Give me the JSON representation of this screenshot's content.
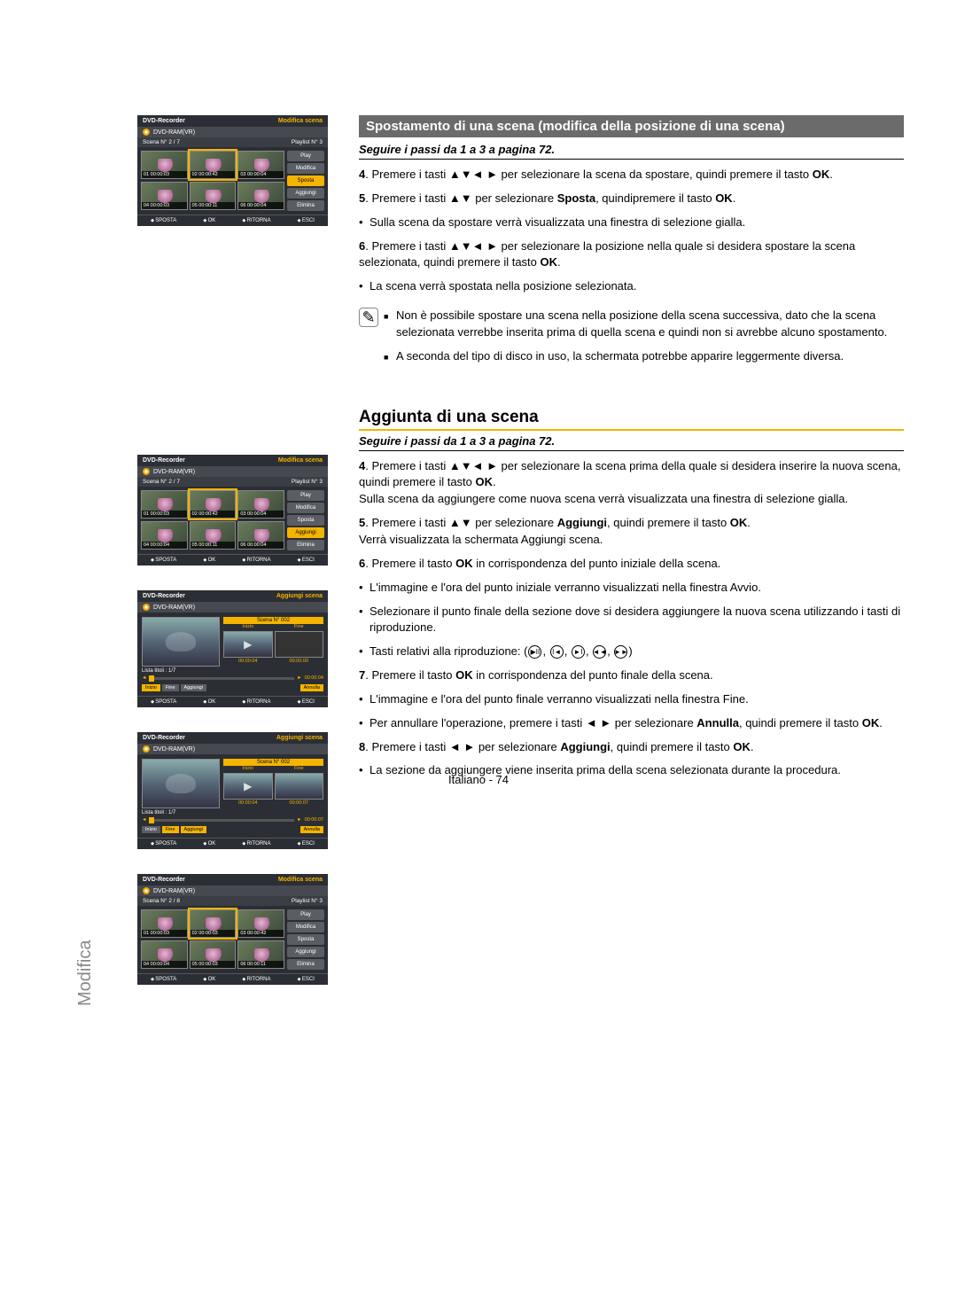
{
  "sideTab": "Modifica",
  "pageNum": "Italiano - 74",
  "section1": {
    "title": "Spostamento di una scena (modifica della posizione di una scena)",
    "follow": "Seguire i passi da 1 a 3 a pagina 72.",
    "s4a": "4",
    "s4b": ". Premere i tasti ▲▼◄ ► per selezionare la scena da spostare, quindi premere il tasto ",
    "s4c": "OK",
    "s4d": ".",
    "s5a": "5",
    "s5b": ". Premere i tasti ▲▼ per selezionare ",
    "s5c": "Sposta",
    "s5d": ", quindipremere il tasto ",
    "s5e": "OK",
    "s5f": ".",
    "s5bul": "Sulla scena da spostare verrà visualizzata una finestra di selezione gialla.",
    "s6a": "6",
    "s6b": ". Premere i tasti ▲▼◄ ► per selezionare la posizione nella quale si desidera spostare la scena selezionata, quindi premere il tasto ",
    "s6c": "OK",
    "s6d": ".",
    "s6bul": "La scena verrà spostata nella posizione selezionata.",
    "note1": "Non è possibile spostare una scena nella posizione della scena successiva, dato che la scena selezionata verrebbe inserita prima di quella scena e quindi non si avrebbe alcuno spostamento.",
    "note2": "A seconda del tipo di disco in uso, la schermata potrebbe apparire leggermente diversa."
  },
  "section2": {
    "title": "Aggiunta di una scena",
    "follow": "Seguire i passi da 1 a 3 a pagina 72.",
    "s4a": "4",
    "s4b": ". Premere i tasti ▲▼◄ ► per selezionare la scena prima della quale si desidera inserire la nuova scena, quindi premere il tasto ",
    "s4c": "OK",
    "s4d": ".",
    "s4e": "Sulla scena da aggiungere come nuova scena verrà visualizzata una finestra di selezione gialla.",
    "s5a": "5",
    "s5b": ". Premere i tasti ▲▼ per selezionare ",
    "s5c": "Aggiungi",
    "s5d": ", quindi premere il tasto ",
    "s5e": "OK",
    "s5f": ".",
    "s5g": "Verrà visualizzata la schermata Aggiungi scena.",
    "s6a": "6",
    "s6b": ". Premere il tasto ",
    "s6c": "OK",
    "s6d": " in corrispondenza del punto iniziale della scena.",
    "s6bul1": "L'immagine e l'ora del punto iniziale verranno visualizzati nella finestra Avvio.",
    "s6bul2": "Selezionare il punto finale della sezione dove si desidera aggiungere la nuova scena utilizzando i tasti di riproduzione.",
    "s6bul3": "Tasti relativi alla riproduzione: (",
    "s7a": "7",
    "s7b": ". Premere il tasto ",
    "s7c": "OK",
    "s7d": " in corrispondenza del punto finale della scena.",
    "s7bul1": "L'immagine e l'ora del punto finale verranno visualizzati nella finestra Fine.",
    "s7bul2a": "Per annullare l'operazione, premere i tasti ◄ ► per selezionare ",
    "s7bul2b": "Annulla",
    "s7bul2c": ", quindi premere il tasto ",
    "s7bul2d": "OK",
    "s7bul2e": ".",
    "s8a": "8",
    "s8b": ". Premere i tasti ◄ ► per selezionare ",
    "s8c": "Aggiungi",
    "s8d": ", quindi premere il tasto ",
    "s8e": "OK",
    "s8f": ".",
    "s8bul": "La sezione da aggiungere viene inserita prima della scena selezionata durante la procedura."
  },
  "panelCommon": {
    "recorder": "DVD-Recorder",
    "modifica": "Modifica scena",
    "aggiungi": "Aggiungi scena",
    "disc": "DVD-RAM(VR)",
    "scenaN": "Scena N°",
    "playlistN": "Playlist N°",
    "pl3": "3",
    "menu": {
      "play": "Play",
      "modifica": "Modifica",
      "sposta": "Sposta",
      "aggiungi": "Aggiungi",
      "elimina": "Elimina"
    },
    "footer": {
      "sposta": "SPOSTA",
      "ok": "OK",
      "ritorna": "RITORNA",
      "esci": "ESCI"
    }
  },
  "panel1": {
    "count": "2 / 7",
    "thumbs": [
      {
        "n": "01",
        "t": "00:00:03"
      },
      {
        "n": "02",
        "t": "00:00:42"
      },
      {
        "n": "03",
        "t": "00:00:04"
      },
      {
        "n": "04",
        "t": "00:00:03"
      },
      {
        "n": "05",
        "t": "00:00:11"
      },
      {
        "n": "06",
        "t": "00:00:04"
      }
    ],
    "sel": 1
  },
  "panel2": {
    "count": "2 / 7",
    "thumbs": [
      {
        "n": "01",
        "t": "00:00:03"
      },
      {
        "n": "02",
        "t": "00:00:42"
      },
      {
        "n": "03",
        "t": "00:00:04"
      },
      {
        "n": "04",
        "t": "00:00:04"
      },
      {
        "n": "05",
        "t": "00:00:11"
      },
      {
        "n": "06",
        "t": "00:00:04"
      }
    ],
    "sel": 1,
    "hl": "aggiungi"
  },
  "panel3": {
    "sceneNum": "Scena N° 002",
    "inizio": "Inizio",
    "fine": "Fine",
    "listTitle": "Lista titoli : 1/7",
    "t1": "00:00:04",
    "t2": "00:00:00",
    "elapsed": "00:00:04",
    "btns": {
      "inizio": "Inizio",
      "fine": "Fine",
      "aggiungi": "Aggiungi",
      "annulla": "Annulla"
    }
  },
  "panel4": {
    "sceneNum": "Scena N° 002",
    "inizio": "Inizio",
    "fine": "Fine",
    "listTitle": "Lista titoli : 1/7",
    "t1": "00:00:04",
    "t2": "00:00:07",
    "elapsed": "00:00:07",
    "btns": {
      "inizio": "Inizio",
      "fine": "Fine",
      "aggiungi": "Aggiungi",
      "annulla": "Annulla"
    }
  },
  "panel5": {
    "count": "2 / 8",
    "thumbs": [
      {
        "n": "01",
        "t": "00:00:03"
      },
      {
        "n": "02",
        "t": "00:00:03"
      },
      {
        "n": "03",
        "t": "00:00:42"
      },
      {
        "n": "04",
        "t": "00:00:04"
      },
      {
        "n": "05",
        "t": "00:00:03"
      },
      {
        "n": "06",
        "t": "00:00:11"
      }
    ],
    "sel": 1
  }
}
